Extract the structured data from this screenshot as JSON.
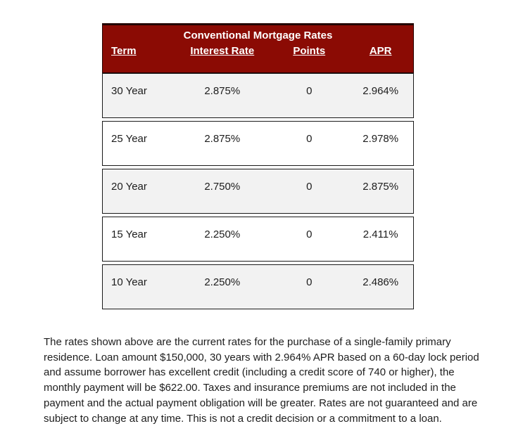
{
  "table": {
    "title": "Conventional Mortgage Rates",
    "columns": {
      "term": "Term",
      "interest_rate": "Interest Rate",
      "points": "Points",
      "apr": "APR"
    },
    "rows": [
      {
        "term": "30 Year",
        "rate": "2.875%",
        "points": "0",
        "apr": "2.964%"
      },
      {
        "term": "25 Year",
        "rate": "2.875%",
        "points": "0",
        "apr": "2.978%"
      },
      {
        "term": "20 Year",
        "rate": "2.750%",
        "points": "0",
        "apr": "2.875%"
      },
      {
        "term": "15 Year",
        "rate": "2.250%",
        "points": "0",
        "apr": "2.411%"
      },
      {
        "term": "10 Year",
        "rate": "2.250%",
        "points": "0",
        "apr": "2.486%"
      }
    ]
  },
  "disclaimer": {
    "lines": [
      "The rates shown above are the current rates for the purchase of a single-family primary",
      "residence. Loan amount $150,000, 30 years with 2.964% APR based on a 60-day lock period",
      "and assume borrower has excellent credit (including a credit score of 740 or higher), the",
      "monthly payment will be $622.00. Taxes and insurance premiums are not included in the",
      "payment and the actual payment obligation will be greater. Rates are not guaranteed and are",
      "subject to change at any time. This is not a credit decision or a commitment to a loan."
    ]
  },
  "colors": {
    "header_bg": "#8B0B04",
    "header_border": "#230301",
    "header_text": "#FFFFFF",
    "row_border": "#1A1A1A",
    "row_alt_bg": "#F2F2F2",
    "row_bg": "#FFFFFF",
    "body_text": "#1D1D1D"
  }
}
